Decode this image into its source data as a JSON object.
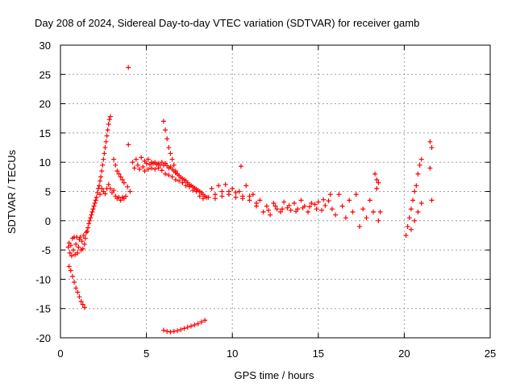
{
  "chart_data": {
    "type": "scatter",
    "title": "Day 208 of 2024, Sidereal Day-to-day VTEC variation (SDTVAR) for receiver gamb",
    "xlabel": "GPS time / hours",
    "ylabel": "SDTVAR / TECUs",
    "xlim": [
      0,
      25
    ],
    "ylim": [
      -20,
      30
    ],
    "grid": true,
    "x_ticks": [
      0,
      5,
      10,
      15,
      20,
      25
    ],
    "x_tick_labels": [
      "0",
      "5",
      "10",
      "15",
      "20",
      "25"
    ],
    "y_ticks": [
      -20,
      -15,
      -10,
      -5,
      0,
      5,
      10,
      15,
      20,
      25,
      30
    ],
    "y_tick_labels": [
      "-20",
      "-15",
      "-10",
      "-5",
      "0",
      "5",
      "10",
      "15",
      "20",
      "25",
      "30"
    ],
    "marker": "+",
    "marker_color": "#ff0000",
    "series": [
      {
        "name": "SDTVAR",
        "points": [
          [
            0.45,
            -4.5
          ],
          [
            0.5,
            -3.8
          ],
          [
            0.55,
            -5.5
          ],
          [
            0.6,
            -4.2
          ],
          [
            0.65,
            -6.0
          ],
          [
            0.7,
            -3.0
          ],
          [
            0.75,
            -5.0
          ],
          [
            0.8,
            -2.8
          ],
          [
            0.85,
            -5.8
          ],
          [
            0.9,
            -4.0
          ],
          [
            0.95,
            -2.8
          ],
          [
            1.0,
            -5.5
          ],
          [
            1.05,
            -4.5
          ],
          [
            1.1,
            -3.2
          ],
          [
            1.15,
            -2.8
          ],
          [
            1.2,
            -5.0
          ],
          [
            1.25,
            -3.5
          ],
          [
            1.3,
            -4.8
          ],
          [
            1.35,
            -2.5
          ],
          [
            1.4,
            -4.0
          ],
          [
            1.45,
            -3.0
          ],
          [
            1.5,
            -2.0
          ],
          [
            1.55,
            -1.8
          ],
          [
            1.6,
            -1.2
          ],
          [
            1.65,
            -0.5
          ],
          [
            1.7,
            0.0
          ],
          [
            1.75,
            0.5
          ],
          [
            1.8,
            1.0
          ],
          [
            1.85,
            1.5
          ],
          [
            1.9,
            2.0
          ],
          [
            1.95,
            2.5
          ],
          [
            2.0,
            3.0
          ],
          [
            2.05,
            3.5
          ],
          [
            2.1,
            4.0
          ],
          [
            2.15,
            4.8
          ],
          [
            2.2,
            5.5
          ],
          [
            2.25,
            6.0
          ],
          [
            2.3,
            6.8
          ],
          [
            2.35,
            7.5
          ],
          [
            2.4,
            8.5
          ],
          [
            2.45,
            9.5
          ],
          [
            2.5,
            10.5
          ],
          [
            2.55,
            11.5
          ],
          [
            2.6,
            12.5
          ],
          [
            2.65,
            13.5
          ],
          [
            2.7,
            14.5
          ],
          [
            2.75,
            15.5
          ],
          [
            2.8,
            16.5
          ],
          [
            2.85,
            17.3
          ],
          [
            2.9,
            17.8
          ],
          [
            0.5,
            -7.8
          ],
          [
            0.6,
            -8.5
          ],
          [
            0.7,
            -9.5
          ],
          [
            0.8,
            -10.5
          ],
          [
            0.9,
            -11.5
          ],
          [
            1.0,
            -12.2
          ],
          [
            1.1,
            -13.0
          ],
          [
            1.2,
            -13.8
          ],
          [
            1.3,
            -14.3
          ],
          [
            1.4,
            -14.8
          ],
          [
            2.3,
            4.5
          ],
          [
            2.4,
            5.5
          ],
          [
            2.5,
            5.0
          ],
          [
            2.6,
            4.6
          ],
          [
            2.7,
            5.5
          ],
          [
            2.8,
            6.2
          ],
          [
            2.9,
            5.5
          ],
          [
            3.0,
            4.8
          ],
          [
            3.1,
            5.2
          ],
          [
            3.2,
            4.2
          ],
          [
            3.3,
            3.8
          ],
          [
            3.4,
            4.0
          ],
          [
            3.5,
            3.5
          ],
          [
            3.6,
            4.0
          ],
          [
            3.7,
            3.8
          ],
          [
            3.8,
            4.2
          ],
          [
            3.1,
            10.5
          ],
          [
            3.2,
            9.5
          ],
          [
            3.3,
            8.5
          ],
          [
            3.4,
            8.0
          ],
          [
            3.5,
            7.5
          ],
          [
            3.6,
            7.0
          ],
          [
            3.7,
            6.5
          ],
          [
            3.95,
            26.2
          ],
          [
            3.95,
            13.0
          ],
          [
            3.9,
            5.8
          ],
          [
            4.05,
            5.0
          ],
          [
            4.2,
            10.0
          ],
          [
            4.3,
            9.0
          ],
          [
            4.4,
            10.5
          ],
          [
            4.5,
            9.5
          ],
          [
            4.6,
            8.8
          ],
          [
            4.7,
            10.8
          ],
          [
            4.8,
            9.2
          ],
          [
            4.9,
            10.2
          ],
          [
            5.0,
            9.8
          ],
          [
            5.1,
            10.5
          ],
          [
            5.2,
            9.6
          ],
          [
            5.3,
            10.0
          ],
          [
            5.4,
            9.8
          ],
          [
            5.5,
            10.0
          ],
          [
            5.6,
            9.6
          ],
          [
            5.7,
            9.8
          ],
          [
            5.8,
            9.5
          ],
          [
            5.9,
            10.0
          ],
          [
            6.0,
            9.5
          ],
          [
            6.1,
            9.8
          ],
          [
            6.2,
            9.4
          ],
          [
            6.3,
            9.0
          ],
          [
            6.4,
            9.2
          ],
          [
            6.5,
            8.8
          ],
          [
            6.6,
            8.5
          ],
          [
            6.7,
            8.2
          ],
          [
            6.8,
            8.0
          ],
          [
            6.9,
            7.7
          ],
          [
            7.0,
            7.4
          ],
          [
            7.1,
            7.2
          ],
          [
            7.2,
            7.0
          ],
          [
            7.3,
            6.8
          ],
          [
            7.4,
            6.5
          ],
          [
            7.5,
            6.2
          ],
          [
            7.6,
            6.0
          ],
          [
            7.7,
            5.8
          ],
          [
            7.8,
            5.6
          ],
          [
            7.9,
            5.4
          ],
          [
            8.0,
            5.2
          ],
          [
            8.1,
            5.0
          ],
          [
            8.2,
            4.8
          ],
          [
            8.3,
            4.5
          ],
          [
            8.4,
            4.2
          ],
          [
            8.5,
            4.0
          ],
          [
            4.9,
            8.5
          ],
          [
            5.1,
            8.8
          ],
          [
            5.3,
            9.0
          ],
          [
            5.5,
            8.8
          ],
          [
            5.7,
            9.0
          ],
          [
            5.9,
            8.6
          ],
          [
            6.1,
            8.0
          ],
          [
            6.3,
            7.8
          ],
          [
            6.5,
            7.5
          ],
          [
            6.7,
            7.0
          ],
          [
            6.9,
            6.8
          ],
          [
            7.1,
            6.5
          ],
          [
            7.3,
            6.0
          ],
          [
            7.5,
            5.8
          ],
          [
            7.7,
            5.2
          ],
          [
            7.9,
            5.0
          ],
          [
            8.1,
            4.2
          ],
          [
            8.3,
            3.8
          ],
          [
            6.0,
            17.0
          ],
          [
            6.1,
            15.5
          ],
          [
            6.2,
            14.0
          ],
          [
            6.3,
            12.5
          ],
          [
            6.4,
            11.5
          ],
          [
            6.5,
            10.5
          ],
          [
            6.6,
            9.5
          ],
          [
            6.7,
            8.5
          ],
          [
            6.0,
            -18.7
          ],
          [
            6.2,
            -18.9
          ],
          [
            6.4,
            -19.0
          ],
          [
            6.6,
            -18.9
          ],
          [
            6.8,
            -18.8
          ],
          [
            7.0,
            -18.6
          ],
          [
            7.2,
            -18.4
          ],
          [
            7.4,
            -18.2
          ],
          [
            7.6,
            -18.0
          ],
          [
            7.8,
            -17.8
          ],
          [
            8.0,
            -17.6
          ],
          [
            8.2,
            -17.3
          ],
          [
            8.4,
            -17.0
          ],
          [
            8.6,
            4.0
          ],
          [
            8.8,
            5.5
          ],
          [
            9.0,
            4.5
          ],
          [
            9.2,
            6.0
          ],
          [
            9.4,
            5.0
          ],
          [
            9.6,
            6.2
          ],
          [
            9.8,
            4.5
          ],
          [
            10.0,
            5.5
          ],
          [
            10.2,
            4.0
          ],
          [
            10.4,
            5.0
          ],
          [
            10.5,
            9.3
          ],
          [
            10.6,
            4.2
          ],
          [
            10.8,
            6.0
          ],
          [
            11.0,
            3.5
          ],
          [
            11.2,
            4.5
          ],
          [
            11.4,
            2.5
          ],
          [
            11.6,
            3.5
          ],
          [
            11.8,
            1.5
          ],
          [
            9.0,
            3.8
          ],
          [
            9.4,
            4.2
          ],
          [
            9.8,
            5.0
          ],
          [
            10.2,
            4.8
          ],
          [
            10.6,
            3.8
          ],
          [
            11.0,
            4.2
          ],
          [
            11.4,
            3.0
          ],
          [
            12.0,
            2.5
          ],
          [
            12.2,
            1.0
          ],
          [
            12.4,
            3.0
          ],
          [
            12.6,
            2.0
          ],
          [
            12.8,
            1.5
          ],
          [
            13.0,
            3.2
          ],
          [
            13.2,
            2.2
          ],
          [
            13.4,
            1.8
          ],
          [
            13.6,
            3.0
          ],
          [
            13.8,
            2.0
          ],
          [
            14.0,
            3.5
          ],
          [
            14.2,
            2.5
          ],
          [
            14.4,
            1.5
          ],
          [
            14.6,
            3.0
          ],
          [
            14.8,
            2.8
          ],
          [
            15.0,
            3.2
          ],
          [
            15.2,
            1.8
          ],
          [
            15.4,
            2.6
          ],
          [
            15.6,
            3.4
          ],
          [
            15.8,
            2.0
          ],
          [
            16.0,
            1.0
          ],
          [
            12.1,
            1.8
          ],
          [
            12.5,
            2.5
          ],
          [
            12.9,
            2.0
          ],
          [
            13.3,
            2.6
          ],
          [
            13.7,
            1.6
          ],
          [
            14.1,
            2.2
          ],
          [
            14.5,
            2.4
          ],
          [
            14.9,
            2.0
          ],
          [
            15.3,
            3.6
          ],
          [
            15.7,
            4.5
          ],
          [
            16.2,
            4.5
          ],
          [
            16.4,
            2.5
          ],
          [
            16.6,
            0.5
          ],
          [
            16.8,
            3.5
          ],
          [
            17.0,
            1.5
          ],
          [
            17.2,
            4.5
          ],
          [
            17.4,
            -1.0
          ],
          [
            17.6,
            2.0
          ],
          [
            17.8,
            0.5
          ],
          [
            18.0,
            3.5
          ],
          [
            18.2,
            1.5
          ],
          [
            18.4,
            5.5
          ],
          [
            18.3,
            8.0
          ],
          [
            18.4,
            7.0
          ],
          [
            18.5,
            6.5
          ],
          [
            18.5,
            0.0
          ],
          [
            18.6,
            1.5
          ],
          [
            20.1,
            -2.5
          ],
          [
            20.2,
            -1.0
          ],
          [
            20.3,
            0.5
          ],
          [
            20.4,
            2.0
          ],
          [
            20.5,
            3.5
          ],
          [
            20.6,
            5.0
          ],
          [
            20.7,
            6.0
          ],
          [
            20.8,
            8.0
          ],
          [
            20.9,
            9.5
          ],
          [
            21.0,
            10.5
          ],
          [
            20.4,
            -1.5
          ],
          [
            20.6,
            0.0
          ],
          [
            20.8,
            1.5
          ],
          [
            21.0,
            3.0
          ],
          [
            21.5,
            13.5
          ],
          [
            21.6,
            12.5
          ],
          [
            21.5,
            9.0
          ],
          [
            21.6,
            3.5
          ]
        ]
      }
    ]
  }
}
